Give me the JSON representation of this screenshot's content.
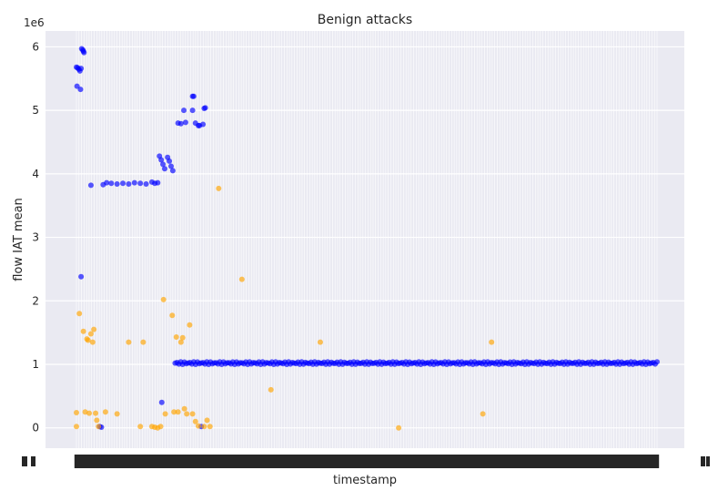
{
  "chart_data": {
    "type": "scatter",
    "title": "Benign attacks",
    "xlabel": "timestamp",
    "ylabel": "flow IAT mean",
    "y_offset_label": "1e6",
    "y_ticks": [
      0,
      1,
      2,
      3,
      4,
      5,
      6
    ],
    "y_tick_labels": [
      "0",
      "1",
      "2",
      "3",
      "4",
      "5",
      "6"
    ],
    "ylim": [
      -0.32,
      6.25
    ],
    "grid": true,
    "background": "#eaeaf2",
    "x_tick_count": 230,
    "x_ticks_note": "categorical timestamp ticks, labels overlap and are illegible",
    "series": [
      {
        "color": "#0000ff",
        "points": [
          [
            0.0,
            5.68
          ],
          [
            0.002,
            5.67
          ],
          [
            0.004,
            5.65
          ],
          [
            0.006,
            5.62
          ],
          [
            0.008,
            5.66
          ],
          [
            0.001,
            5.38
          ],
          [
            0.007,
            5.33
          ],
          [
            0.009,
            5.97
          ],
          [
            0.011,
            5.95
          ],
          [
            0.012,
            5.93
          ],
          [
            0.013,
            5.91
          ],
          [
            0.025,
            3.82
          ],
          [
            0.046,
            3.83
          ],
          [
            0.052,
            3.86
          ],
          [
            0.06,
            3.85
          ],
          [
            0.07,
            3.84
          ],
          [
            0.08,
            3.85
          ],
          [
            0.09,
            3.84
          ],
          [
            0.1,
            3.86
          ],
          [
            0.11,
            3.85
          ],
          [
            0.12,
            3.84
          ],
          [
            0.13,
            3.87
          ],
          [
            0.135,
            3.85
          ],
          [
            0.14,
            3.86
          ],
          [
            0.008,
            2.38
          ],
          [
            0.04,
            0.02
          ],
          [
            0.043,
            0.01
          ],
          [
            0.143,
            4.28
          ],
          [
            0.146,
            4.22
          ],
          [
            0.149,
            4.15
          ],
          [
            0.152,
            4.08
          ],
          [
            0.157,
            4.26
          ],
          [
            0.16,
            4.2
          ],
          [
            0.163,
            4.12
          ],
          [
            0.166,
            4.05
          ],
          [
            0.147,
            0.4
          ],
          [
            0.175,
            4.8
          ],
          [
            0.18,
            4.79
          ],
          [
            0.188,
            4.81
          ],
          [
            0.185,
            5.0
          ],
          [
            0.2,
            5.0
          ],
          [
            0.2,
            5.22
          ],
          [
            0.202,
            5.22
          ],
          [
            0.205,
            4.8
          ],
          [
            0.21,
            4.76
          ],
          [
            0.212,
            4.76
          ],
          [
            0.218,
            4.78
          ],
          [
            0.22,
            5.03
          ],
          [
            0.222,
            5.04
          ],
          [
            0.215,
            0.02
          ]
        ]
      },
      {
        "color": "#ffa500",
        "points": [
          [
            0.0,
            0.24
          ],
          [
            0.0,
            0.02
          ],
          [
            0.005,
            1.8
          ],
          [
            0.012,
            1.52
          ],
          [
            0.015,
            0.25
          ],
          [
            0.018,
            1.4
          ],
          [
            0.02,
            1.38
          ],
          [
            0.022,
            0.23
          ],
          [
            0.025,
            1.48
          ],
          [
            0.028,
            1.35
          ],
          [
            0.03,
            1.55
          ],
          [
            0.033,
            0.23
          ],
          [
            0.035,
            0.12
          ],
          [
            0.038,
            0.02
          ],
          [
            0.05,
            0.25
          ],
          [
            0.07,
            0.22
          ],
          [
            0.09,
            1.35
          ],
          [
            0.11,
            0.02
          ],
          [
            0.115,
            1.35
          ],
          [
            0.13,
            0.02
          ],
          [
            0.135,
            0.01
          ],
          [
            0.14,
            0.0
          ],
          [
            0.145,
            0.02
          ],
          [
            0.15,
            2.02
          ],
          [
            0.153,
            0.22
          ],
          [
            0.165,
            1.77
          ],
          [
            0.168,
            0.25
          ],
          [
            0.172,
            1.43
          ],
          [
            0.175,
            0.25
          ],
          [
            0.18,
            1.35
          ],
          [
            0.183,
            1.42
          ],
          [
            0.186,
            0.3
          ],
          [
            0.19,
            0.22
          ],
          [
            0.195,
            1.62
          ],
          [
            0.2,
            0.22
          ],
          [
            0.205,
            0.1
          ],
          [
            0.21,
            0.03
          ],
          [
            0.22,
            0.02
          ],
          [
            0.225,
            0.12
          ],
          [
            0.23,
            0.02
          ],
          [
            0.245,
            3.77
          ],
          [
            0.285,
            2.34
          ],
          [
            0.335,
            0.6
          ],
          [
            0.42,
            1.35
          ],
          [
            0.555,
            0.0
          ],
          [
            0.7,
            0.22
          ],
          [
            0.715,
            1.35
          ]
        ]
      }
    ],
    "baseline_series": {
      "color": "#0000ff",
      "x_start": 0.17,
      "x_end": 1.0,
      "y_center": 1.02,
      "y_jitter": 0.02,
      "count": 260
    }
  }
}
